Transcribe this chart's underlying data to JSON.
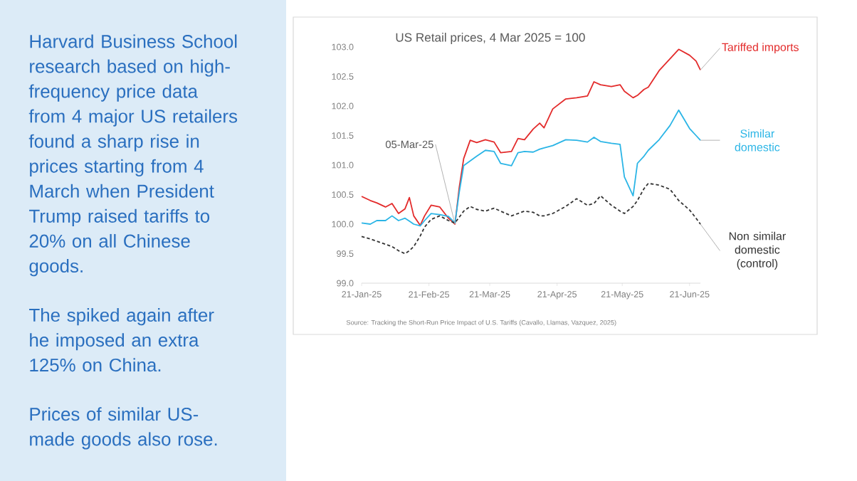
{
  "chart_data": {
    "type": "line",
    "title": "US Retail prices, 4 Mar 2025 = 100",
    "x": [
      "2025-01-21",
      "2025-01-25",
      "2025-01-28",
      "2025-02-01",
      "2025-02-04",
      "2025-02-07",
      "2025-02-10",
      "2025-02-12",
      "2025-02-14",
      "2025-02-17",
      "2025-02-19",
      "2025-02-22",
      "2025-02-26",
      "2025-03-02",
      "2025-03-05",
      "2025-03-07",
      "2025-03-09",
      "2025-03-12",
      "2025-03-15",
      "2025-03-19",
      "2025-03-23",
      "2025-03-26",
      "2025-03-31",
      "2025-04-03",
      "2025-04-06",
      "2025-04-10",
      "2025-04-13",
      "2025-04-15",
      "2025-04-19",
      "2025-04-25",
      "2025-04-30",
      "2025-05-05",
      "2025-05-08",
      "2025-05-11",
      "2025-05-16",
      "2025-05-20",
      "2025-05-22",
      "2025-05-26",
      "2025-05-28",
      "2025-05-31",
      "2025-06-02",
      "2025-06-07",
      "2025-06-12",
      "2025-06-16",
      "2025-06-21",
      "2025-06-24",
      "2025-06-26"
    ],
    "series": [
      {
        "name": "Tariffed imports",
        "color": "#e32b2b",
        "line_style": "solid",
        "values": [
          100.47,
          100.4,
          100.36,
          100.29,
          100.35,
          100.18,
          100.26,
          100.45,
          100.14,
          99.98,
          100.14,
          100.32,
          100.29,
          100.1,
          100.0,
          100.63,
          101.11,
          101.42,
          101.38,
          101.43,
          101.39,
          101.21,
          101.23,
          101.45,
          101.43,
          101.61,
          101.71,
          101.63,
          101.95,
          102.12,
          102.14,
          102.17,
          102.41,
          102.36,
          102.33,
          102.36,
          102.25,
          102.14,
          102.18,
          102.28,
          102.32,
          102.6,
          102.8,
          102.96,
          102.86,
          102.76,
          102.61
        ]
      },
      {
        "name": "Similar domestic",
        "color": "#2bb5e6",
        "line_style": "solid",
        "values": [
          100.02,
          100.0,
          100.06,
          100.06,
          100.14,
          100.06,
          100.1,
          100.05,
          100.0,
          99.97,
          100.06,
          100.18,
          100.16,
          100.13,
          100.02,
          100.55,
          100.99,
          101.07,
          101.15,
          101.25,
          101.23,
          101.03,
          100.99,
          101.21,
          101.23,
          101.22,
          101.27,
          101.29,
          101.33,
          101.43,
          101.42,
          101.39,
          101.47,
          101.4,
          101.37,
          101.35,
          100.8,
          100.48,
          101.03,
          101.15,
          101.25,
          101.43,
          101.67,
          101.93,
          101.62,
          101.5,
          101.42
        ]
      },
      {
        "name": "Non similar domestic (control)",
        "color": "#333333",
        "line_style": "dashed",
        "values": [
          99.79,
          99.75,
          99.71,
          99.66,
          99.62,
          99.55,
          99.5,
          99.55,
          99.62,
          99.8,
          99.95,
          100.08,
          100.14,
          100.06,
          100.02,
          100.12,
          100.22,
          100.3,
          100.25,
          100.22,
          100.27,
          100.22,
          100.14,
          100.18,
          100.22,
          100.2,
          100.14,
          100.14,
          100.18,
          100.3,
          100.43,
          100.32,
          100.35,
          100.48,
          100.32,
          100.22,
          100.18,
          100.3,
          100.4,
          100.6,
          100.69,
          100.66,
          100.59,
          100.4,
          100.24,
          100.1,
          100.0
        ]
      }
    ],
    "xlim": [
      "2025-01-21",
      "2025-06-26"
    ],
    "xticks": [
      {
        "value": "2025-01-21",
        "label": "21-Jan-25"
      },
      {
        "value": "2025-02-21",
        "label": "21-Feb-25"
      },
      {
        "value": "2025-03-21",
        "label": "21-Mar-25"
      },
      {
        "value": "2025-04-21",
        "label": "21-Apr-25"
      },
      {
        "value": "2025-05-21",
        "label": "21-May-25"
      },
      {
        "value": "2025-06-21",
        "label": "21-Jun-25"
      }
    ],
    "ylim": [
      99.0,
      103.0
    ],
    "yticks": [
      {
        "value": 99.0,
        "label": "99.0"
      },
      {
        "value": 99.5,
        "label": "99.5"
      },
      {
        "value": 100.0,
        "label": "100.0"
      },
      {
        "value": 100.5,
        "label": "100.5"
      },
      {
        "value": 101.0,
        "label": "101.0"
      },
      {
        "value": 101.5,
        "label": "101.5"
      },
      {
        "value": 102.0,
        "label": "102.0"
      },
      {
        "value": 102.5,
        "label": "102.5"
      },
      {
        "value": 103.0,
        "label": "103.0"
      }
    ],
    "marker": "none",
    "annotations": [
      "Harvard Business School research based on high-frequency price data from 4 major US retailers found a sharp rise in prices starting from 4 March when President Trump raised tariffs to 20% on all Chinese goods.",
      "The spiked again after he imposed an extra 125% on China.",
      "Prices of similar US-made goods also rose.",
      {
        "text": "05-Mar-25",
        "x": "2025-03-05",
        "y": 100.0
      },
      "Source: Tracking the Short-Run Price Impact of U.S. Tariffs (Cavallo, Llamas, Vazquez, 2025)"
    ]
  }
}
